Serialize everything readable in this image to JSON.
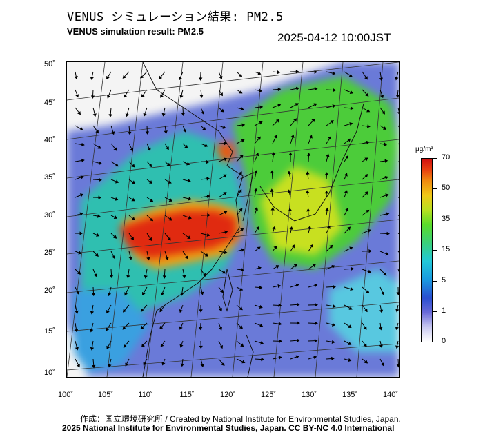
{
  "header": {
    "title_jp": "VENUS シミュレーション結果: PM2.5",
    "title_en": "VENUS simulation result: PM2.5",
    "timestamp": "2025-04-12 10:00JST"
  },
  "map": {
    "lat_labels": [
      "50˚",
      "45˚",
      "40˚",
      "35˚",
      "30˚",
      "25˚",
      "20˚",
      "15˚",
      "10˚"
    ],
    "lon_labels": [
      "100˚",
      "105˚",
      "110˚",
      "115˚",
      "120˚",
      "125˚",
      "130˚",
      "135˚",
      "140˚"
    ]
  },
  "colorbar": {
    "unit": "μg/m³",
    "labels": [
      "70",
      "50",
      "35",
      "15",
      "5",
      "1",
      "0"
    ]
  },
  "footer": {
    "credit_1": "作成：国立環境研究所 / Created by National Institute for Environmental Studies, Japan.",
    "credit_2": "2025 National Institute for Environmental Studies, Japan. CC BY-NC 4.0 International"
  }
}
